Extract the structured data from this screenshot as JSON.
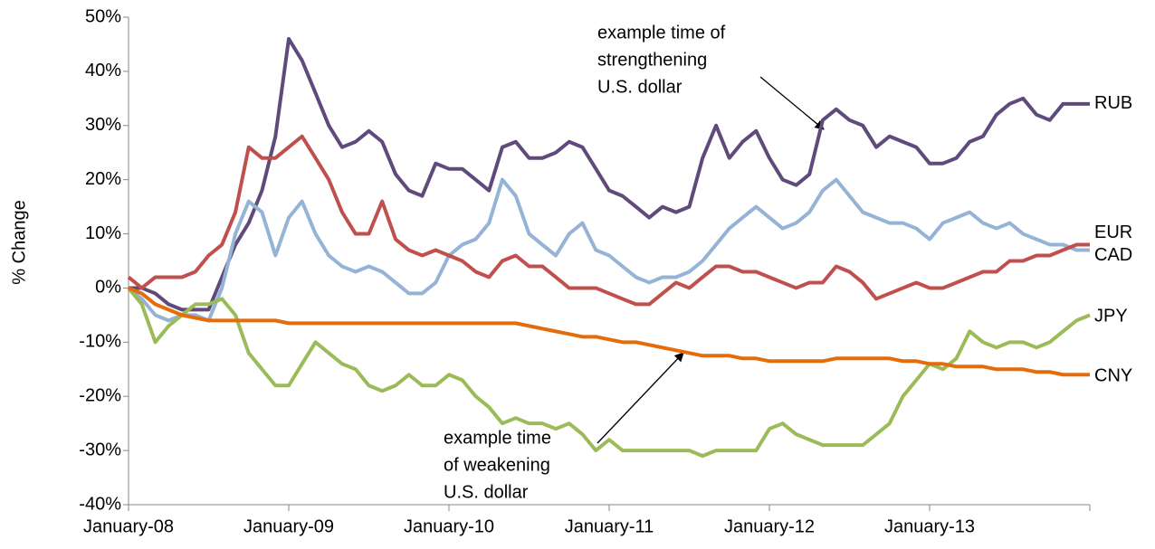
{
  "chart_data": {
    "type": "line",
    "y_label": "% Change",
    "x": [
      2008,
      2008.083,
      2008.167,
      2008.25,
      2008.333,
      2008.417,
      2008.5,
      2008.583,
      2008.667,
      2008.75,
      2008.833,
      2008.917,
      2009,
      2009.083,
      2009.167,
      2009.25,
      2009.333,
      2009.417,
      2009.5,
      2009.583,
      2009.667,
      2009.75,
      2009.833,
      2009.917,
      2010,
      2010.083,
      2010.167,
      2010.25,
      2010.333,
      2010.417,
      2010.5,
      2010.583,
      2010.667,
      2010.75,
      2010.833,
      2010.917,
      2011,
      2011.083,
      2011.167,
      2011.25,
      2011.333,
      2011.417,
      2011.5,
      2011.583,
      2011.667,
      2011.75,
      2011.833,
      2011.917,
      2012,
      2012.083,
      2012.167,
      2012.25,
      2012.333,
      2012.417,
      2012.5,
      2012.583,
      2012.667,
      2012.75,
      2012.833,
      2012.917,
      2013,
      2013.083,
      2013.167,
      2013.25,
      2013.333,
      2013.417,
      2013.5,
      2013.583,
      2013.667,
      2013.75,
      2013.833,
      2013.917,
      2014
    ],
    "series": [
      {
        "name": "RUB",
        "color": "#604a7b",
        "values": [
          0,
          0,
          -1,
          -3,
          -4,
          -4,
          -4,
          2,
          8,
          12,
          18,
          28,
          46,
          42,
          36,
          30,
          26,
          27,
          29,
          27,
          21,
          18,
          17,
          23,
          22,
          22,
          20,
          18,
          26,
          27,
          24,
          24,
          25,
          27,
          26,
          22,
          18,
          17,
          15,
          13,
          15,
          14,
          15,
          24,
          30,
          24,
          27,
          29,
          24,
          20,
          19,
          21,
          31,
          33,
          31,
          30,
          26,
          28,
          27,
          26,
          23,
          23,
          24,
          27,
          28,
          32,
          34,
          35,
          32,
          31,
          34,
          34,
          34
        ]
      },
      {
        "name": "EUR",
        "color": "#95b3d7",
        "values": [
          0,
          -2,
          -5,
          -6,
          -5,
          -5,
          -6,
          0,
          10,
          16,
          14,
          6,
          13,
          16,
          10,
          6,
          4,
          3,
          4,
          3,
          1,
          -1,
          -1,
          1,
          6,
          8,
          9,
          12,
          20,
          17,
          10,
          8,
          6,
          10,
          12,
          7,
          6,
          4,
          2,
          1,
          2,
          2,
          3,
          5,
          8,
          11,
          13,
          15,
          13,
          11,
          12,
          14,
          18,
          20,
          17,
          14,
          13,
          12,
          12,
          11,
          9,
          12,
          13,
          14,
          12,
          11,
          12,
          10,
          9,
          8,
          8,
          7,
          7
        ]
      },
      {
        "name": "CAD",
        "color": "#c0504d",
        "values": [
          2,
          0,
          2,
          2,
          2,
          3,
          6,
          8,
          14,
          26,
          24,
          24,
          26,
          28,
          24,
          20,
          14,
          10,
          10,
          16,
          9,
          7,
          6,
          7,
          6,
          5,
          3,
          2,
          5,
          6,
          4,
          4,
          2,
          0,
          0,
          0,
          -1,
          -2,
          -3,
          -3,
          -1,
          1,
          0,
          2,
          4,
          4,
          3,
          3,
          2,
          1,
          0,
          1,
          1,
          4,
          3,
          1,
          -2,
          -1,
          0,
          1,
          0,
          0,
          1,
          2,
          3,
          3,
          5,
          5,
          6,
          6,
          7,
          8,
          8
        ]
      },
      {
        "name": "JPY",
        "color": "#9bbb59",
        "values": [
          0,
          -3,
          -10,
          -7,
          -5,
          -3,
          -3,
          -2,
          -5,
          -12,
          -15,
          -18,
          -18,
          -14,
          -10,
          -12,
          -14,
          -15,
          -18,
          -19,
          -18,
          -16,
          -18,
          -18,
          -16,
          -17,
          -20,
          -22,
          -25,
          -24,
          -25,
          -25,
          -26,
          -25,
          -27,
          -30,
          -28,
          -30,
          -30,
          -30,
          -30,
          -30,
          -30,
          -31,
          -30,
          -30,
          -30,
          -30,
          -26,
          -25,
          -27,
          -28,
          -29,
          -29,
          -29,
          -29,
          -27,
          -25,
          -20,
          -17,
          -14,
          -15,
          -13,
          -8,
          -10,
          -11,
          -10,
          -10,
          -11,
          -10,
          -8,
          -6,
          -5
        ]
      },
      {
        "name": "CNY",
        "color": "#e46c0a",
        "values": [
          0,
          -1,
          -3,
          -4,
          -5,
          -5.5,
          -6,
          -6,
          -6,
          -6,
          -6,
          -6,
          -6.5,
          -6.5,
          -6.5,
          -6.5,
          -6.5,
          -6.5,
          -6.5,
          -6.5,
          -6.5,
          -6.5,
          -6.5,
          -6.5,
          -6.5,
          -6.5,
          -6.5,
          -6.5,
          -6.5,
          -6.5,
          -7,
          -7.5,
          -8,
          -8.5,
          -9,
          -9,
          -9.5,
          -10,
          -10,
          -10.5,
          -11,
          -11.5,
          -12,
          -12.5,
          -12.5,
          -12.5,
          -13,
          -13,
          -13.5,
          -13.5,
          -13.5,
          -13.5,
          -13.5,
          -13,
          -13,
          -13,
          -13,
          -13,
          -13.5,
          -13.5,
          -14,
          -14,
          -14.5,
          -14.5,
          -14.5,
          -15,
          -15,
          -15,
          -15.5,
          -15.5,
          -16,
          -16,
          -16
        ]
      }
    ],
    "xlim": [
      2008,
      2014
    ],
    "xticks": [
      {
        "value": 2008,
        "label": "January-08"
      },
      {
        "value": 2009,
        "label": "January-09"
      },
      {
        "value": 2010,
        "label": "January-10"
      },
      {
        "value": 2011,
        "label": "January-11"
      },
      {
        "value": 2012,
        "label": "January-12"
      },
      {
        "value": 2013,
        "label": "January-13"
      }
    ],
    "ylim": [
      -40,
      50
    ],
    "yticks": [
      {
        "value": -40,
        "label": "-40%"
      },
      {
        "value": -30,
        "label": "-30%"
      },
      {
        "value": -20,
        "label": "-20%"
      },
      {
        "value": -10,
        "label": "-10%"
      },
      {
        "value": 0,
        "label": "0%"
      },
      {
        "value": 10,
        "label": "10%"
      },
      {
        "value": 20,
        "label": "20%"
      },
      {
        "value": 30,
        "label": "30%"
      },
      {
        "value": 40,
        "label": "40%"
      },
      {
        "value": 50,
        "label": "50%"
      }
    ],
    "annotations": [
      {
        "lines": [
          "example time of",
          "strengthening",
          "U.S. dollar"
        ]
      },
      {
        "lines": [
          "example time",
          "of weakening",
          "U.S. dollar"
        ]
      }
    ]
  }
}
